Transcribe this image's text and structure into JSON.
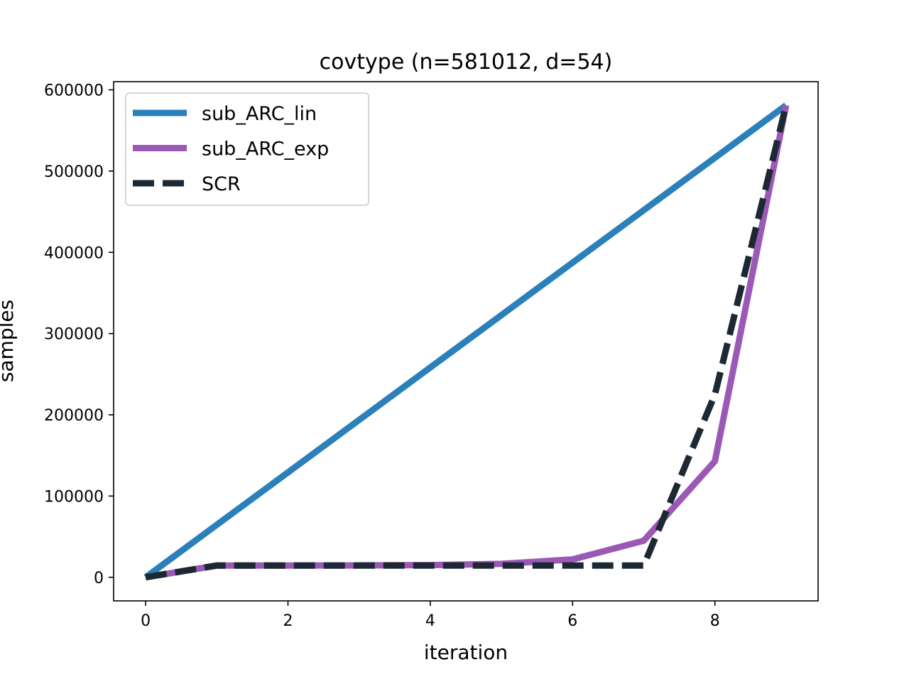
{
  "chart_data": {
    "type": "line",
    "title": "covtype (n=581012, d=54)",
    "xlabel": "iteration",
    "ylabel": "samples",
    "xlim": [
      -0.45,
      9.45
    ],
    "ylim": [
      -29050,
      610063
    ],
    "xticks": [
      0,
      2,
      4,
      6,
      8
    ],
    "xtick_labels": [
      "0",
      "2",
      "4",
      "6",
      "8"
    ],
    "yticks": [
      0,
      100000,
      200000,
      300000,
      400000,
      500000,
      600000
    ],
    "ytick_labels": [
      "0",
      "100000",
      "200000",
      "300000",
      "400000",
      "500000",
      "600000"
    ],
    "grid": false,
    "legend_position": "upper-left",
    "x": [
      0,
      1,
      2,
      3,
      4,
      5,
      6,
      7,
      8,
      9
    ],
    "series": [
      {
        "name": "sub_ARC_lin",
        "color": "#2b7fbb",
        "style": "solid",
        "values": [
          0,
          64557,
          129114,
          193671,
          258228,
          322784,
          387341,
          451898,
          516455,
          581012
        ]
      },
      {
        "name": "sub_ARC_exp",
        "color": "#9b59b6",
        "style": "solid",
        "values": [
          0,
          14500,
          14500,
          14600,
          15000,
          16500,
          22000,
          45000,
          143000,
          581012
        ]
      },
      {
        "name": "SCR",
        "color": "#1c2833",
        "style": "dashed",
        "values": [
          0,
          14500,
          14500,
          14500,
          14500,
          14500,
          14500,
          14500,
          225000,
          581012
        ]
      }
    ]
  }
}
